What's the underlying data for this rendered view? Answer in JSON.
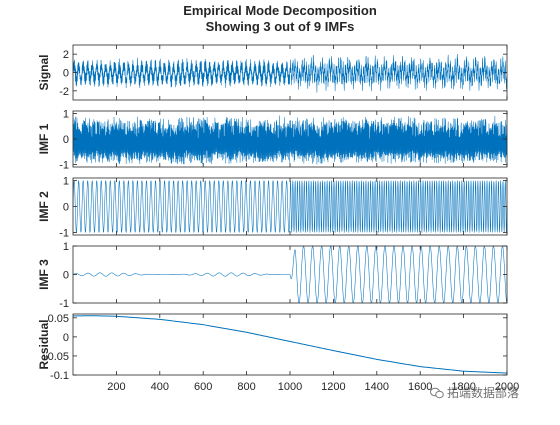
{
  "chart_data": {
    "type": "line",
    "title": "Empirical Mode Decomposition",
    "subtitle": "Showing 3 out of 9 IMFs",
    "x_range": [
      0,
      2000
    ],
    "x_ticks": [
      200,
      400,
      600,
      800,
      1000,
      1200,
      1400,
      1600,
      1800,
      2000
    ],
    "line_color": "#0072BD",
    "grid": false,
    "panels": [
      {
        "name": "Signal",
        "ylim": [
          -3,
          3
        ],
        "y_ticks": [
          2,
          0,
          -2
        ],
        "description_model": "sum of IMFs; amplitude ~2.2 high-frequency noise-like oscillation for x<1000, then amplitude ~2.3 oscillation for x>=1000"
      },
      {
        "name": "IMF 1",
        "ylim": [
          -1.1,
          1.1
        ],
        "y_ticks": [
          1,
          0,
          -1
        ],
        "amplitude_first_half": 1.0,
        "amplitude_second_half": 1.0,
        "period_samples_first_half": 3,
        "period_samples_second_half": 3
      },
      {
        "name": "IMF 2",
        "ylim": [
          -1.1,
          1.1
        ],
        "y_ticks": [
          1,
          0,
          -1
        ],
        "amplitude_first_half": 1.0,
        "amplitude_second_half": 1.0,
        "cycles_first_half": 48,
        "cycles_second_half": 95
      },
      {
        "name": "IMF 3",
        "ylim": [
          -1,
          1
        ],
        "y_ticks": [
          1,
          0,
          -1
        ],
        "amplitude_first_half": 0.06,
        "amplitude_second_half": 1.0,
        "cycles_second_half": 24
      },
      {
        "name": "Residual",
        "ylim": [
          -0.1,
          0.06
        ],
        "y_ticks": [
          0.05,
          0,
          -0.05,
          -0.1
        ],
        "x": [
          0,
          100,
          200,
          400,
          600,
          800,
          1000,
          1200,
          1400,
          1600,
          1800,
          2000
        ],
        "y": [
          0.055,
          0.0555,
          0.054,
          0.046,
          0.032,
          0.012,
          -0.012,
          -0.036,
          -0.059,
          -0.078,
          -0.09,
          -0.095
        ]
      }
    ]
  },
  "watermark": {
    "text": "拓端数据部落",
    "icon": "wechat-icon"
  }
}
